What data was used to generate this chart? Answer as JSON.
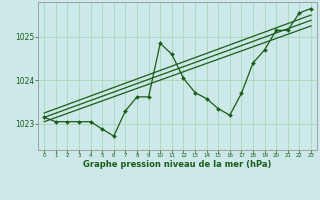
{
  "xlabel": "Graphe pression niveau de la mer (hPa)",
  "xlim": [
    -0.5,
    23.5
  ],
  "ylim": [
    1022.4,
    1025.8
  ],
  "yticks": [
    1023,
    1024,
    1025
  ],
  "xticks": [
    0,
    1,
    2,
    3,
    4,
    5,
    6,
    7,
    8,
    9,
    10,
    11,
    12,
    13,
    14,
    15,
    16,
    17,
    18,
    19,
    20,
    21,
    22,
    23
  ],
  "background_color": "#cde8e8",
  "grid_color": "#a8d8b8",
  "line_color": "#1a5c1a",
  "main_line_y": [
    1023.15,
    1023.05,
    1023.05,
    1023.05,
    1023.05,
    1022.88,
    1022.72,
    1023.3,
    1023.62,
    1023.62,
    1024.85,
    1024.6,
    1024.05,
    1023.72,
    1023.58,
    1023.35,
    1023.2,
    1023.7,
    1024.4,
    1024.7,
    1025.15,
    1025.15,
    1025.55,
    1025.65
  ],
  "trend1_x": [
    0,
    23
  ],
  "trend1_y": [
    1023.05,
    1025.25
  ],
  "trend2_x": [
    0,
    23
  ],
  "trend2_y": [
    1023.15,
    1025.38
  ],
  "trend3_x": [
    0,
    23
  ],
  "trend3_y": [
    1023.25,
    1025.5
  ]
}
